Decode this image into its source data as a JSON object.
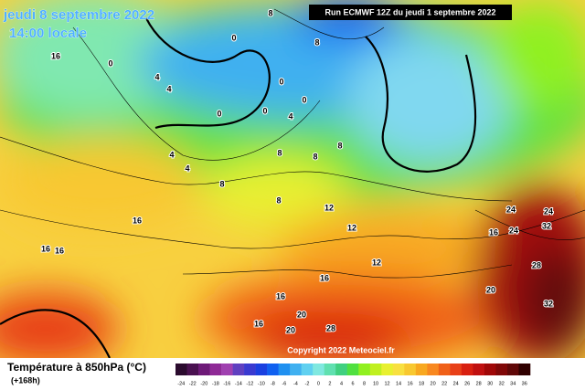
{
  "header": {
    "date": "jeudi 8 septembre 2022",
    "time": "14:00 locale",
    "run": "Run ECMWF 12Z du jeudi 1 septembre 2022"
  },
  "map": {
    "contour_labels": [
      "8",
      "8",
      "0",
      "0",
      "4",
      "4",
      "0",
      "0",
      "0",
      "0",
      "4",
      "4",
      "8",
      "8",
      "8",
      "4",
      "16",
      "16",
      "16",
      "16",
      "8",
      "8",
      "12",
      "12",
      "12",
      "16",
      "16",
      "16",
      "20",
      "20",
      "20",
      "24",
      "24",
      "28",
      "28",
      "32",
      "32",
      "24",
      "16"
    ]
  },
  "footer": {
    "title": "Température à 850hPa (°C)",
    "lead": "(+168h)",
    "copyright": "Copyright 2022 Meteociel.fr"
  },
  "legend": {
    "ticks": [
      -24,
      -22,
      -20,
      -18,
      -16,
      -14,
      -12,
      -10,
      -8,
      -6,
      -4,
      -2,
      0,
      2,
      4,
      6,
      8,
      10,
      12,
      14,
      16,
      18,
      20,
      22,
      24,
      26,
      28,
      30,
      32,
      34,
      36
    ],
    "colors": [
      "#2b0b2e",
      "#4a1150",
      "#6e1a78",
      "#8f2a96",
      "#a040b0",
      "#6040c0",
      "#3a3ad0",
      "#1a40e0",
      "#1060f0",
      "#2090f0",
      "#40b0f0",
      "#60d0f0",
      "#80e8e0",
      "#60e0b0",
      "#40d080",
      "#50e040",
      "#90f020",
      "#c0f020",
      "#e8f030",
      "#f8e040",
      "#f8c830",
      "#f8a820",
      "#f88820",
      "#f06018",
      "#e84018",
      "#d82010",
      "#c01010",
      "#a00808",
      "#800808",
      "#600808",
      "#300000"
    ]
  }
}
